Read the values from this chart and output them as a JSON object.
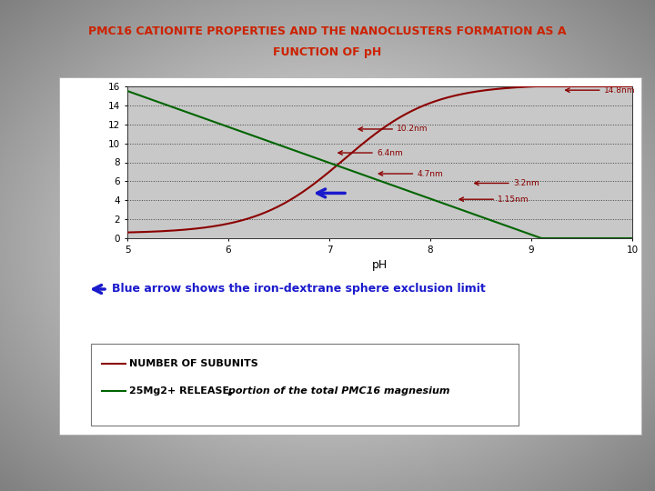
{
  "title_line1": "PMC16 CATIONITE PROPERTIES AND THE NANOCLUSTERS FORMATION AS A",
  "title_line2": "FUNCTION OF pH",
  "title_color": "#cc2200",
  "xlabel": "pH",
  "xlim": [
    5,
    10
  ],
  "ylim": [
    0,
    16
  ],
  "yticks": [
    0,
    2,
    4,
    6,
    8,
    10,
    12,
    14,
    16
  ],
  "xticks": [
    5,
    6,
    7,
    8,
    9,
    10
  ],
  "dark_red_color": "#8B0000",
  "green_color": "#006400",
  "blue_arrow_color": "#1a1acc",
  "annotation_color": "#8B0000",
  "plot_bg_color": "#c8c8c8",
  "slide_bg_light": "#e8e8e8",
  "slide_bg_dark": "#888888",
  "white_panel_color": "#ffffff",
  "annots": [
    [
      9.3,
      15.6,
      "14.8nm"
    ],
    [
      7.25,
      11.5,
      "10.2nm"
    ],
    [
      7.05,
      9.0,
      "6.4nm"
    ],
    [
      7.45,
      6.8,
      "4.7nm"
    ],
    [
      8.4,
      5.8,
      "3.2nm"
    ],
    [
      8.25,
      4.1,
      "1.15nm"
    ]
  ],
  "blue_arrow_note": "Blue arrow shows the iron-dextrane sphere exclusion limit",
  "legend_line1": "NUMBER OF SUBUNITS",
  "legend_line2": "25Mg2+ RELEASE,",
  "legend_italic": " portion of the total PMC16 magnesium"
}
